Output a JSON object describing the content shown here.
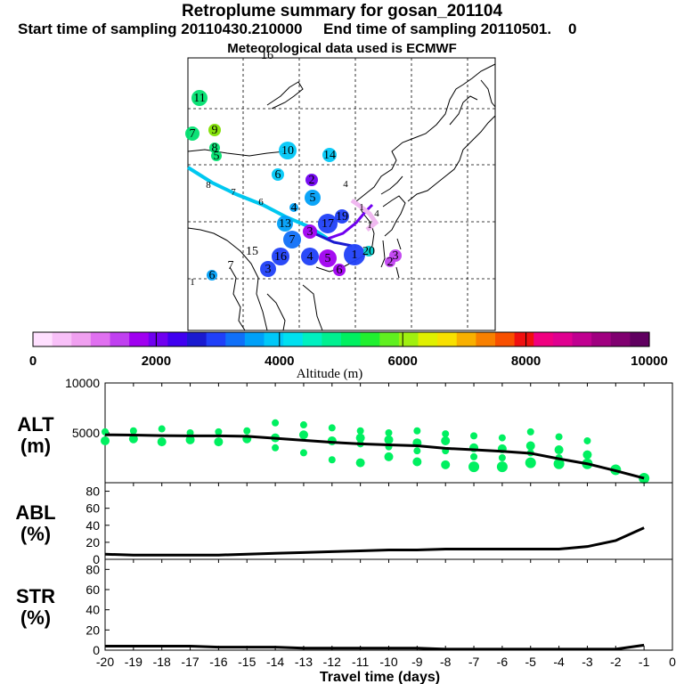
{
  "header": {
    "title": "Retroplume summary for gosan_201104",
    "start_label": "Start time of sampling 20110430.210000",
    "end_label": "End time of sampling 20110501.",
    "end_suffix": "0",
    "met_label": "Meteorological data used is ECMWF"
  },
  "colorbar": {
    "ticks": [
      "0",
      "2000",
      "4000",
      "6000",
      "8000",
      "10000"
    ],
    "title": "Altitude (m)",
    "colors": [
      "#ffe0ff",
      "#f8c0f8",
      "#f0a0f0",
      "#e070f0",
      "#c040f0",
      "#a000f0",
      "#7000f0",
      "#4000f0",
      "#1a1ad0",
      "#2040f8",
      "#1070f8",
      "#00a0f8",
      "#00c8f8",
      "#00e0f0",
      "#00f0c0",
      "#00f090",
      "#00f060",
      "#20f030",
      "#60f020",
      "#a0f010",
      "#e0f000",
      "#f8e000",
      "#f8b000",
      "#f88000",
      "#f85000",
      "#f01010",
      "#f00080",
      "#e00090",
      "#c00090",
      "#a00080",
      "#800070",
      "#600060"
    ]
  },
  "map": {
    "labels": [
      {
        "t": "16",
        "c": "#00e0c0"
      },
      {
        "t": "11",
        "c": "#00e070"
      },
      {
        "t": "7",
        "c": "#00e070"
      },
      {
        "t": "9",
        "c": "#80e000"
      },
      {
        "t": "8",
        "c": "#00e070"
      },
      {
        "t": "5",
        "c": "#00e070"
      },
      {
        "t": "10",
        "c": "#00c8f8"
      },
      {
        "t": "14",
        "c": "#00c8f8"
      },
      {
        "t": "8",
        "c": "#00c8f8"
      },
      {
        "t": "7",
        "c": "#00c8f8"
      },
      {
        "t": "6",
        "c": "#00c8f8"
      },
      {
        "t": "6",
        "c": "#00c8f8"
      },
      {
        "t": "2",
        "c": "#7000f0"
      },
      {
        "t": "5",
        "c": "#00a0f8"
      },
      {
        "t": "4",
        "c": "#00a0f8"
      },
      {
        "t": "13",
        "c": "#00a0f8"
      },
      {
        "t": "4",
        "c": "#f0b0f0"
      },
      {
        "t": "1",
        "c": "#7000f0"
      },
      {
        "t": "4",
        "c": "#f0b0f0"
      },
      {
        "t": "1",
        "c": "#f0b0f0"
      },
      {
        "t": "19",
        "c": "#2040f8"
      },
      {
        "t": "17",
        "c": "#2040f8"
      },
      {
        "t": "3",
        "c": "#a000f0"
      },
      {
        "t": "7",
        "c": "#1070f8"
      },
      {
        "t": "15",
        "c": "#00c8f8"
      },
      {
        "t": "7",
        "c": "#00c8f8"
      },
      {
        "t": "1",
        "c": "#00a0f8"
      },
      {
        "t": "6",
        "c": "#00a0f8"
      },
      {
        "t": "16",
        "c": "#2040f8"
      },
      {
        "t": "3",
        "c": "#2040f8"
      },
      {
        "t": "4",
        "c": "#2040f8"
      },
      {
        "t": "5",
        "c": "#a000f0"
      },
      {
        "t": "1",
        "c": "#2040f8"
      },
      {
        "t": "6",
        "c": "#a000f0"
      },
      {
        "t": "20",
        "c": "#00c8c8"
      },
      {
        "t": "2",
        "c": "#c040f0"
      },
      {
        "t": "3",
        "c": "#c040f0"
      }
    ]
  },
  "chart_data": [
    {
      "type": "line",
      "panel": "ALT",
      "ylabel": "ALT\n(m)",
      "ylabel_lines": [
        "ALT",
        "(m)"
      ],
      "ylim": [
        0,
        10000
      ],
      "yticks": [
        "5000",
        "10000"
      ],
      "x": [
        -20,
        -19,
        -18,
        -17,
        -16,
        -15,
        -14,
        -13,
        -12,
        -11,
        -10,
        -9,
        -8,
        -7,
        -6,
        -5,
        -4,
        -3,
        -2,
        -1
      ],
      "series": [
        {
          "name": "mean altitude",
          "values": [
            4800,
            4780,
            4720,
            4700,
            4700,
            4650,
            4450,
            4250,
            4050,
            3900,
            3800,
            3700,
            3450,
            3300,
            3150,
            2950,
            2400,
            1900,
            1200,
            450
          ]
        }
      ],
      "scatter": [
        {
          "x": -20,
          "ys": [
            5100,
            4200
          ]
        },
        {
          "x": -19,
          "ys": [
            5200,
            4400
          ]
        },
        {
          "x": -18,
          "ys": [
            5400,
            4100
          ]
        },
        {
          "x": -17,
          "ys": [
            5000,
            4300
          ]
        },
        {
          "x": -16,
          "ys": [
            5100,
            4100
          ]
        },
        {
          "x": -15,
          "ys": [
            5200,
            4400
          ]
        },
        {
          "x": -14,
          "ys": [
            6000,
            4500,
            3500
          ]
        },
        {
          "x": -13,
          "ys": [
            5800,
            4800,
            3000
          ]
        },
        {
          "x": -12,
          "ys": [
            5500,
            4200,
            2300
          ]
        },
        {
          "x": -11,
          "ys": [
            5200,
            4500,
            3900,
            2000
          ]
        },
        {
          "x": -10,
          "ys": [
            5000,
            4300,
            3600,
            2600
          ]
        },
        {
          "x": -9,
          "ys": [
            5200,
            4000,
            3200,
            2100
          ]
        },
        {
          "x": -8,
          "ys": [
            4900,
            4200,
            3200,
            1800
          ]
        },
        {
          "x": -7,
          "ys": [
            4700,
            3500,
            2600,
            1600
          ]
        },
        {
          "x": -6,
          "ys": [
            4500,
            3400,
            2500,
            1600
          ]
        },
        {
          "x": -5,
          "ys": [
            5100,
            3700,
            3000,
            2000
          ]
        },
        {
          "x": -4,
          "ys": [
            4600,
            3300,
            2500,
            1900
          ]
        },
        {
          "x": -3,
          "ys": [
            4200,
            2800,
            1900
          ]
        },
        {
          "x": -2,
          "ys": [
            1300
          ]
        },
        {
          "x": -1,
          "ys": [
            450
          ]
        }
      ]
    },
    {
      "type": "line",
      "panel": "ABL",
      "ylabel_lines": [
        "ABL",
        "(%)"
      ],
      "ylim": [
        0,
        90
      ],
      "yticks": [
        "0",
        "20",
        "40",
        "60",
        "80"
      ],
      "x": [
        -20,
        -19,
        -18,
        -17,
        -16,
        -15,
        -14,
        -13,
        -12,
        -11,
        -10,
        -9,
        -8,
        -7,
        -6,
        -5,
        -4,
        -3,
        -2,
        -1
      ],
      "series": [
        {
          "name": "ABL fraction",
          "values": [
            6,
            5,
            5,
            5,
            5,
            6,
            7,
            8,
            9,
            10,
            11,
            11,
            12,
            12,
            12,
            12,
            12,
            15,
            22,
            37
          ]
        }
      ]
    },
    {
      "type": "line",
      "panel": "STR",
      "ylabel_lines": [
        "STR",
        "(%)"
      ],
      "ylim": [
        0,
        90
      ],
      "yticks": [
        "0",
        "20",
        "40",
        "60",
        "80"
      ],
      "x": [
        -20,
        -19,
        -18,
        -17,
        -16,
        -15,
        -14,
        -13,
        -12,
        -11,
        -10,
        -9,
        -8,
        -7,
        -6,
        -5,
        -4,
        -3,
        -2,
        -1
      ],
      "xticks": [
        "-20",
        "-19",
        "-18",
        "-17",
        "-16",
        "-15",
        "-14",
        "-13",
        "-12",
        "-11",
        "-10",
        "-9",
        "-8",
        "-7",
        "-6",
        "-5",
        "-4",
        "-3",
        "-2",
        "-1",
        "0"
      ],
      "xlabel": "Travel time (days)",
      "series": [
        {
          "name": "stratospheric fraction",
          "values": [
            4,
            4,
            4,
            4,
            3,
            3,
            3,
            2,
            2,
            2,
            2,
            2,
            1,
            1,
            1,
            1,
            1,
            1,
            1,
            5
          ]
        }
      ]
    }
  ]
}
